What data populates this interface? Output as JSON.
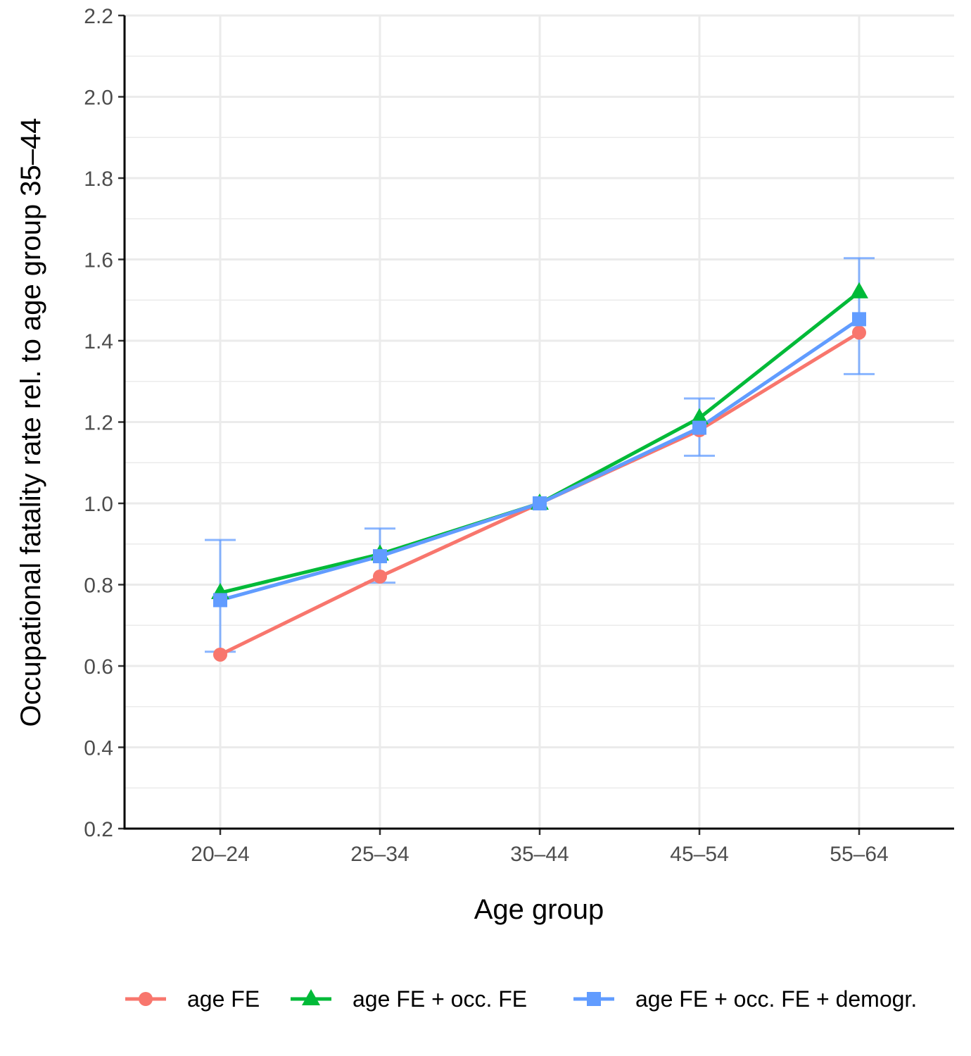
{
  "chart_data": {
    "type": "line",
    "title": "",
    "xlabel": "Age group",
    "ylabel": "Occupational fatality rate rel. to age group 35–44",
    "categories": [
      "20–24",
      "25–34",
      "35–44",
      "45–54",
      "55–64"
    ],
    "ylim": [
      0.2,
      2.2
    ],
    "yticks": [
      "0.2",
      "0.4",
      "0.6",
      "0.8",
      "1.0",
      "1.2",
      "1.4",
      "1.6",
      "1.8",
      "2.0",
      "2.2"
    ],
    "grid": true,
    "legend_position": "bottom",
    "series": [
      {
        "name": "age FE",
        "color": "#f8766d",
        "marker": "circle",
        "values": [
          0.628,
          0.82,
          1.0,
          1.18,
          1.42
        ]
      },
      {
        "name": "age FE + occ. FE",
        "color": "#00ba38",
        "marker": "triangle",
        "values": [
          0.78,
          0.875,
          1.0,
          1.21,
          1.52
        ]
      },
      {
        "name": "age FE + occ. FE + demogr.",
        "color": "#619cff",
        "marker": "square",
        "values": [
          0.762,
          0.87,
          1.0,
          1.186,
          1.453
        ],
        "error_low": [
          0.635,
          0.805,
          1.0,
          1.117,
          1.318
        ],
        "error_high": [
          0.91,
          0.938,
          1.0,
          1.258,
          1.603
        ]
      }
    ]
  }
}
